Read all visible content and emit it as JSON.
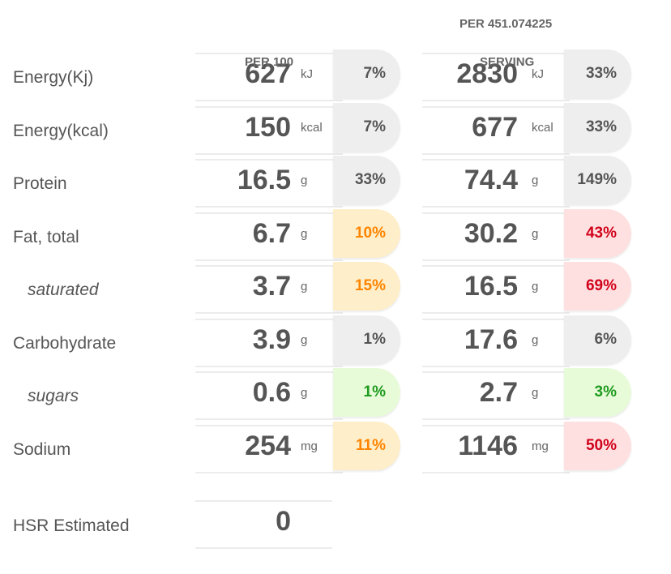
{
  "headers": {
    "per100": "PER 100",
    "serving_line1": "PER 451.074225",
    "serving_line2": "SERVING"
  },
  "rows": [
    {
      "label": "Energy(Kj)",
      "per100": {
        "value": "627",
        "unit": "kJ",
        "pct": "7%",
        "level": "grey"
      },
      "serving": {
        "value": "2830",
        "unit": "kJ",
        "pct": "33%",
        "level": "grey"
      }
    },
    {
      "label": "Energy(kcal)",
      "per100": {
        "value": "150",
        "unit": "kcal",
        "pct": "7%",
        "level": "grey"
      },
      "serving": {
        "value": "677",
        "unit": "kcal",
        "pct": "33%",
        "level": "grey"
      }
    },
    {
      "label": "Protein",
      "per100": {
        "value": "16.5",
        "unit": "g",
        "pct": "33%",
        "level": "grey"
      },
      "serving": {
        "value": "74.4",
        "unit": "g",
        "pct": "149%",
        "level": "grey"
      }
    },
    {
      "label": "Fat, total",
      "per100": {
        "value": "6.7",
        "unit": "g",
        "pct": "10%",
        "level": "orange"
      },
      "serving": {
        "value": "30.2",
        "unit": "g",
        "pct": "43%",
        "level": "red"
      }
    },
    {
      "label": "saturated",
      "per100": {
        "value": "3.7",
        "unit": "g",
        "pct": "15%",
        "level": "orange"
      },
      "serving": {
        "value": "16.5",
        "unit": "g",
        "pct": "69%",
        "level": "red"
      }
    },
    {
      "label": "Carbohydrate",
      "per100": {
        "value": "3.9",
        "unit": "g",
        "pct": "1%",
        "level": "grey"
      },
      "serving": {
        "value": "17.6",
        "unit": "g",
        "pct": "6%",
        "level": "grey"
      }
    },
    {
      "label": "sugars",
      "per100": {
        "value": "0.6",
        "unit": "g",
        "pct": "1%",
        "level": "green"
      },
      "serving": {
        "value": "2.7",
        "unit": "g",
        "pct": "3%",
        "level": "green"
      }
    },
    {
      "label": "Sodium",
      "per100": {
        "value": "254",
        "unit": "mg",
        "pct": "11%",
        "level": "orange"
      },
      "serving": {
        "value": "1146",
        "unit": "mg",
        "pct": "50%",
        "level": "red"
      }
    }
  ],
  "hsr": {
    "label": "HSR Estimated",
    "value": "0"
  },
  "colors": {
    "grey_bg": "#eeeeee",
    "orange_bg": "#feeec9",
    "orange_text": "#ff8400",
    "red_bg": "#ffe0e0",
    "red_text": "#d0021b",
    "green_bg": "#e8fbd9",
    "green_text": "#1e9a1e"
  }
}
